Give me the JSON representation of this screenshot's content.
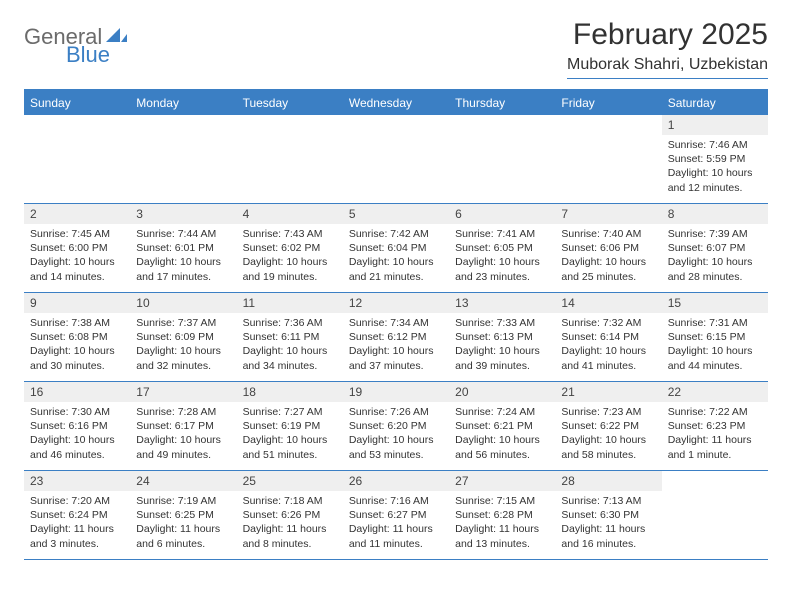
{
  "logo": {
    "general": "General",
    "blue": "Blue"
  },
  "title": "February 2025",
  "location": "Muborak Shahri, Uzbekistan",
  "colors": {
    "brand_blue": "#3b7fc4",
    "header_text": "#ffffff",
    "daynum_bg": "#efefef",
    "body_text": "#333333",
    "logo_gray": "#6b6b6b"
  },
  "day_names": [
    "Sunday",
    "Monday",
    "Tuesday",
    "Wednesday",
    "Thursday",
    "Friday",
    "Saturday"
  ],
  "weeks": [
    [
      null,
      null,
      null,
      null,
      null,
      null,
      {
        "n": "1",
        "sr": "Sunrise: 7:46 AM",
        "ss": "Sunset: 5:59 PM",
        "dl": "Daylight: 10 hours and 12 minutes."
      }
    ],
    [
      {
        "n": "2",
        "sr": "Sunrise: 7:45 AM",
        "ss": "Sunset: 6:00 PM",
        "dl": "Daylight: 10 hours and 14 minutes."
      },
      {
        "n": "3",
        "sr": "Sunrise: 7:44 AM",
        "ss": "Sunset: 6:01 PM",
        "dl": "Daylight: 10 hours and 17 minutes."
      },
      {
        "n": "4",
        "sr": "Sunrise: 7:43 AM",
        "ss": "Sunset: 6:02 PM",
        "dl": "Daylight: 10 hours and 19 minutes."
      },
      {
        "n": "5",
        "sr": "Sunrise: 7:42 AM",
        "ss": "Sunset: 6:04 PM",
        "dl": "Daylight: 10 hours and 21 minutes."
      },
      {
        "n": "6",
        "sr": "Sunrise: 7:41 AM",
        "ss": "Sunset: 6:05 PM",
        "dl": "Daylight: 10 hours and 23 minutes."
      },
      {
        "n": "7",
        "sr": "Sunrise: 7:40 AM",
        "ss": "Sunset: 6:06 PM",
        "dl": "Daylight: 10 hours and 25 minutes."
      },
      {
        "n": "8",
        "sr": "Sunrise: 7:39 AM",
        "ss": "Sunset: 6:07 PM",
        "dl": "Daylight: 10 hours and 28 minutes."
      }
    ],
    [
      {
        "n": "9",
        "sr": "Sunrise: 7:38 AM",
        "ss": "Sunset: 6:08 PM",
        "dl": "Daylight: 10 hours and 30 minutes."
      },
      {
        "n": "10",
        "sr": "Sunrise: 7:37 AM",
        "ss": "Sunset: 6:09 PM",
        "dl": "Daylight: 10 hours and 32 minutes."
      },
      {
        "n": "11",
        "sr": "Sunrise: 7:36 AM",
        "ss": "Sunset: 6:11 PM",
        "dl": "Daylight: 10 hours and 34 minutes."
      },
      {
        "n": "12",
        "sr": "Sunrise: 7:34 AM",
        "ss": "Sunset: 6:12 PM",
        "dl": "Daylight: 10 hours and 37 minutes."
      },
      {
        "n": "13",
        "sr": "Sunrise: 7:33 AM",
        "ss": "Sunset: 6:13 PM",
        "dl": "Daylight: 10 hours and 39 minutes."
      },
      {
        "n": "14",
        "sr": "Sunrise: 7:32 AM",
        "ss": "Sunset: 6:14 PM",
        "dl": "Daylight: 10 hours and 41 minutes."
      },
      {
        "n": "15",
        "sr": "Sunrise: 7:31 AM",
        "ss": "Sunset: 6:15 PM",
        "dl": "Daylight: 10 hours and 44 minutes."
      }
    ],
    [
      {
        "n": "16",
        "sr": "Sunrise: 7:30 AM",
        "ss": "Sunset: 6:16 PM",
        "dl": "Daylight: 10 hours and 46 minutes."
      },
      {
        "n": "17",
        "sr": "Sunrise: 7:28 AM",
        "ss": "Sunset: 6:17 PM",
        "dl": "Daylight: 10 hours and 49 minutes."
      },
      {
        "n": "18",
        "sr": "Sunrise: 7:27 AM",
        "ss": "Sunset: 6:19 PM",
        "dl": "Daylight: 10 hours and 51 minutes."
      },
      {
        "n": "19",
        "sr": "Sunrise: 7:26 AM",
        "ss": "Sunset: 6:20 PM",
        "dl": "Daylight: 10 hours and 53 minutes."
      },
      {
        "n": "20",
        "sr": "Sunrise: 7:24 AM",
        "ss": "Sunset: 6:21 PM",
        "dl": "Daylight: 10 hours and 56 minutes."
      },
      {
        "n": "21",
        "sr": "Sunrise: 7:23 AM",
        "ss": "Sunset: 6:22 PM",
        "dl": "Daylight: 10 hours and 58 minutes."
      },
      {
        "n": "22",
        "sr": "Sunrise: 7:22 AM",
        "ss": "Sunset: 6:23 PM",
        "dl": "Daylight: 11 hours and 1 minute."
      }
    ],
    [
      {
        "n": "23",
        "sr": "Sunrise: 7:20 AM",
        "ss": "Sunset: 6:24 PM",
        "dl": "Daylight: 11 hours and 3 minutes."
      },
      {
        "n": "24",
        "sr": "Sunrise: 7:19 AM",
        "ss": "Sunset: 6:25 PM",
        "dl": "Daylight: 11 hours and 6 minutes."
      },
      {
        "n": "25",
        "sr": "Sunrise: 7:18 AM",
        "ss": "Sunset: 6:26 PM",
        "dl": "Daylight: 11 hours and 8 minutes."
      },
      {
        "n": "26",
        "sr": "Sunrise: 7:16 AM",
        "ss": "Sunset: 6:27 PM",
        "dl": "Daylight: 11 hours and 11 minutes."
      },
      {
        "n": "27",
        "sr": "Sunrise: 7:15 AM",
        "ss": "Sunset: 6:28 PM",
        "dl": "Daylight: 11 hours and 13 minutes."
      },
      {
        "n": "28",
        "sr": "Sunrise: 7:13 AM",
        "ss": "Sunset: 6:30 PM",
        "dl": "Daylight: 11 hours and 16 minutes."
      },
      null
    ]
  ]
}
